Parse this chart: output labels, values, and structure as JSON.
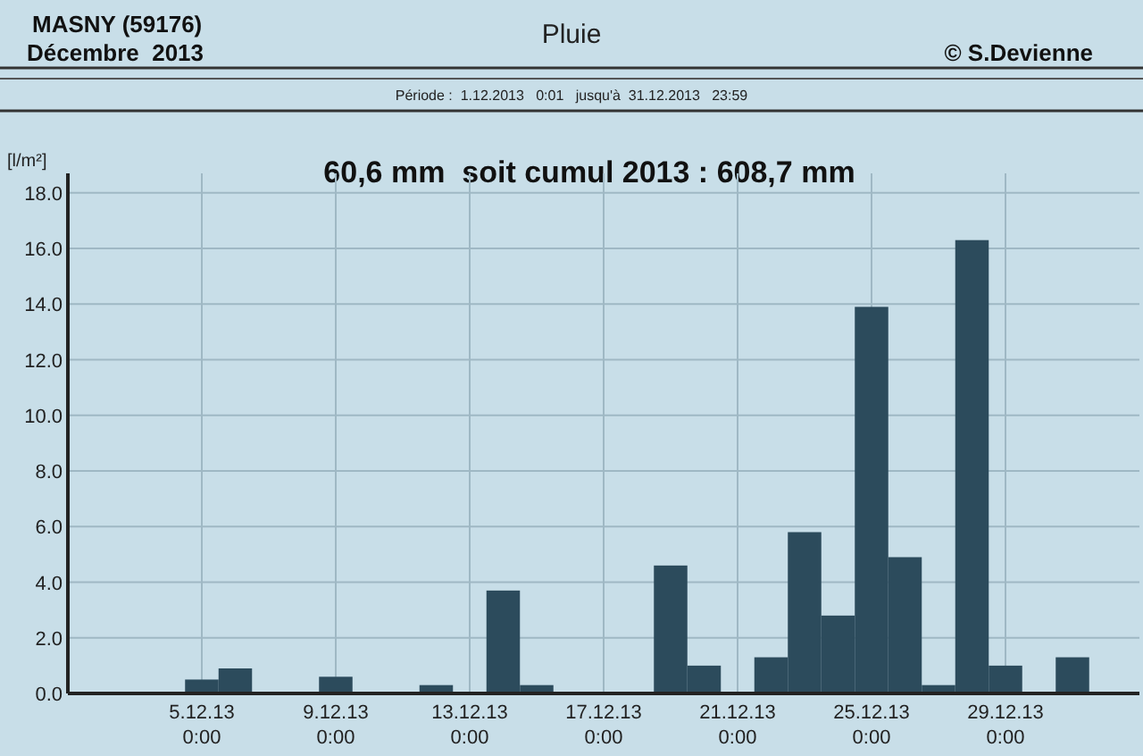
{
  "chart_data": {
    "type": "bar",
    "title": "Pluie",
    "subtitle": "Période :  1.12.2013   0:01   jusqu'à  31.12.2013   23:59",
    "ylabel": "[l/m²]",
    "annotations": [
      "MASNY (59176)",
      "Décembre  2013",
      "© S.Devienne",
      "60,6 mm  soit cumul 2013 : 608,7 mm"
    ],
    "x": [
      "2013-12-05",
      "2013-12-06",
      "2013-12-09",
      "2013-12-12",
      "2013-12-14",
      "2013-12-15",
      "2013-12-19",
      "2013-12-20",
      "2013-12-22",
      "2013-12-23",
      "2013-12-24",
      "2013-12-25",
      "2013-12-26",
      "2013-12-27",
      "2013-12-28",
      "2013-12-29",
      "2013-12-31"
    ],
    "values": [
      0.5,
      0.9,
      0.6,
      0.3,
      3.7,
      0.3,
      4.6,
      1.0,
      1.3,
      5.8,
      2.8,
      13.9,
      4.9,
      0.3,
      16.3,
      1.0,
      1.3
    ],
    "color": "#2c4b5c",
    "xlim": [
      "2013-12-01",
      "2014-01-02"
    ],
    "xticks": [
      {
        "value": "2013-12-05",
        "label": "5.12.13\n0:00"
      },
      {
        "value": "2013-12-09",
        "label": "9.12.13\n0:00"
      },
      {
        "value": "2013-12-13",
        "label": "13.12.13\n0:00"
      },
      {
        "value": "2013-12-17",
        "label": "17.12.13\n0:00"
      },
      {
        "value": "2013-12-21",
        "label": "21.12.13\n0:00"
      },
      {
        "value": "2013-12-25",
        "label": "25.12.13\n0:00"
      },
      {
        "value": "2013-12-29",
        "label": "29.12.13\n0:00"
      }
    ],
    "ylim": [
      0,
      18.7
    ],
    "yticks": [
      {
        "value": 0,
        "label": "0.0"
      },
      {
        "value": 2,
        "label": "2.0"
      },
      {
        "value": 4,
        "label": "4.0"
      },
      {
        "value": 6,
        "label": "6.0"
      },
      {
        "value": 8,
        "label": "8.0"
      },
      {
        "value": 10,
        "label": "10.0"
      },
      {
        "value": 12,
        "label": "12.0"
      },
      {
        "value": 14,
        "label": "14.0"
      },
      {
        "value": 16,
        "label": "16.0"
      },
      {
        "value": 18,
        "label": "18.0"
      }
    ],
    "grid": true
  }
}
